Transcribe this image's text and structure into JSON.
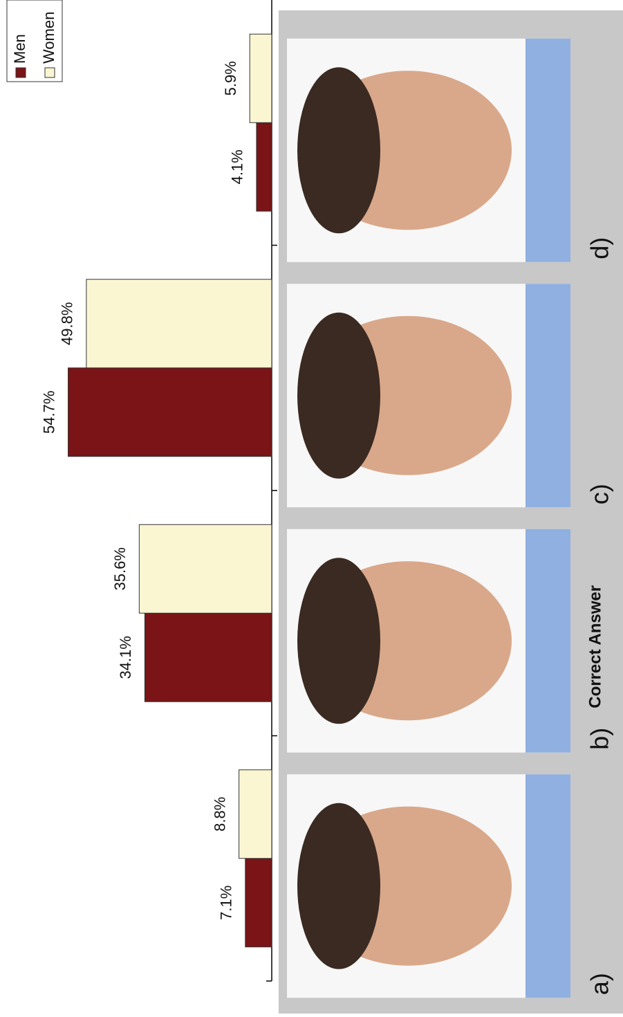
{
  "chart_data": {
    "type": "bar",
    "categories": [
      "a)",
      "b)",
      "c)",
      "d)"
    ],
    "series": [
      {
        "name": "Men",
        "color": "#7a1416",
        "values": [
          7.1,
          34.1,
          54.7,
          4.1
        ],
        "value_labels": [
          "7.1%",
          "34.1%",
          "54.7%",
          "4.1%"
        ]
      },
      {
        "name": "Women",
        "color": "#fbf6d2",
        "values": [
          8.8,
          35.6,
          49.8,
          5.9
        ],
        "value_labels": [
          "8.8%",
          "35.6%",
          "49.8%",
          "5.9%"
        ]
      }
    ],
    "ylim": [
      0,
      73
    ],
    "annotation": "Correct Answer"
  }
}
